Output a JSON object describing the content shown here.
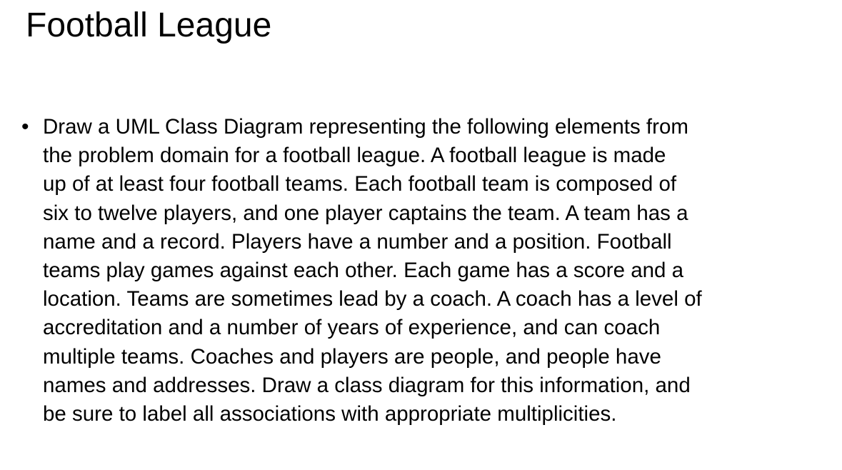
{
  "slide": {
    "title": "Football League",
    "bullet_symbol": "•",
    "bullet_lines": [
      "Draw a UML Class Diagram representing the following elements from",
      "the problem domain for a football league. A football league is made",
      "up of at least four football teams. Each football team is composed of",
      "six to twelve players, and one player captains the team. A team has a",
      "name and a record. Players have a number and a position. Football",
      "teams play games against each other. Each game has a score and a",
      "location. Teams are sometimes lead by a coach. A coach has a level of",
      "accreditation and a number of years of experience, and can coach",
      "multiple teams. Coaches and players are people, and people have",
      "names and addresses. Draw a class diagram for this information, and",
      "be sure to label all associations with appropriate multiplicities."
    ]
  }
}
